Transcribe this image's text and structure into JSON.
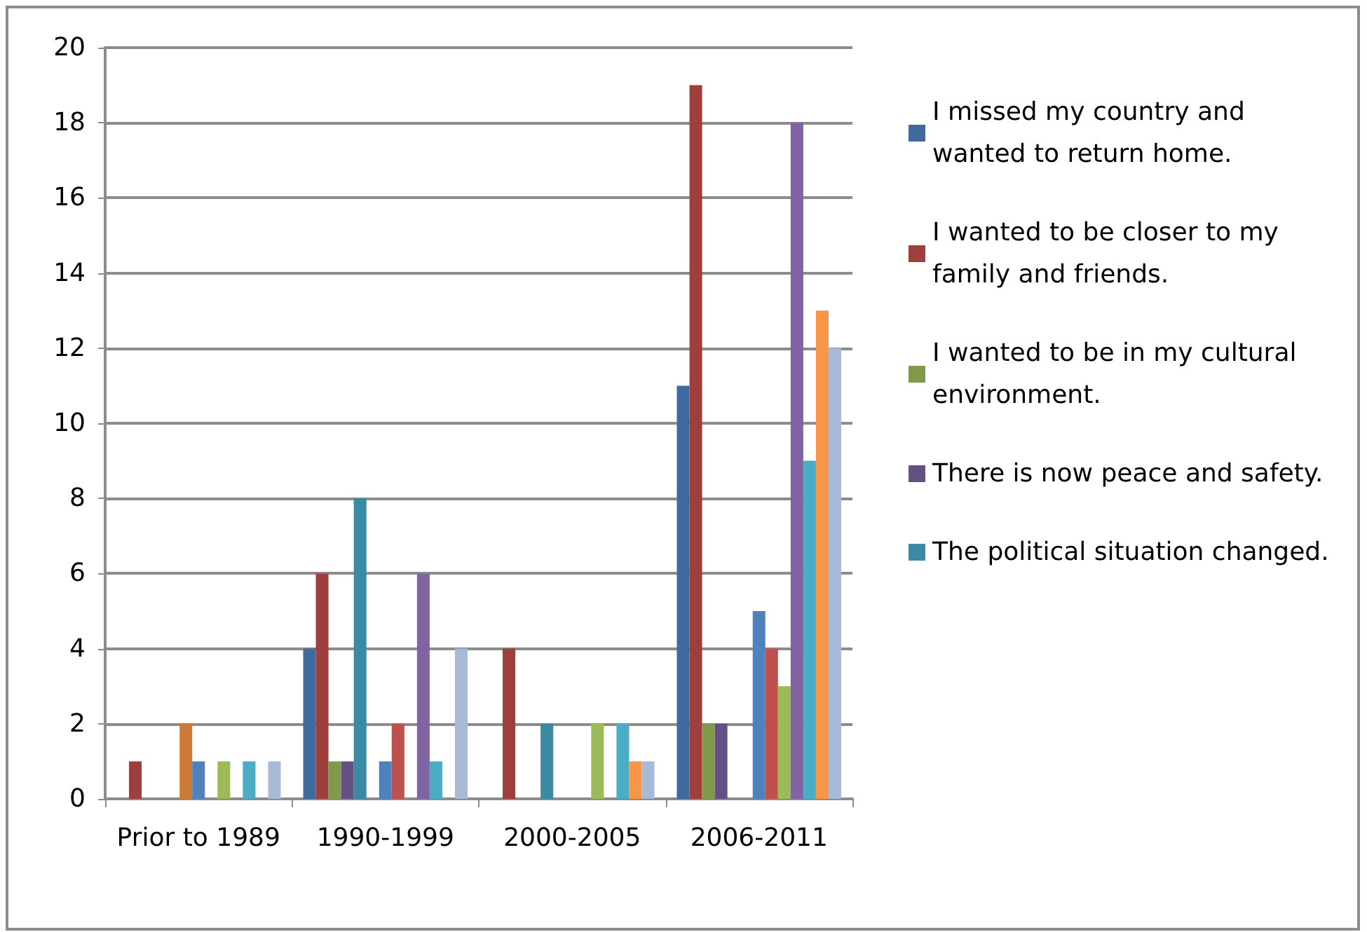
{
  "chart_data": {
    "type": "bar",
    "categories": [
      "Prior to 1989",
      "1990-1999",
      "2000-2005",
      "2006-2011"
    ],
    "series": [
      {
        "name": "I missed my country and wanted to return home.",
        "color": "#3f6aa0",
        "values": [
          0,
          4,
          0,
          11
        ]
      },
      {
        "name": "I wanted to be closer to my family and friends.",
        "color": "#9e3f3d",
        "values": [
          1,
          6,
          4,
          19
        ]
      },
      {
        "name": "I wanted to be in my cultural environment.",
        "color": "#7f9a48",
        "values": [
          0,
          1,
          0,
          2
        ]
      },
      {
        "name": "There is now peace and safety.",
        "color": "#664f84",
        "values": [
          0,
          1,
          0,
          2
        ]
      },
      {
        "name": "The political situation changed.",
        "color": "#3a8aa3",
        "values": [
          0,
          8,
          2,
          0
        ]
      },
      {
        "color": "#cc7a35",
        "values": [
          2,
          0,
          0,
          0
        ]
      },
      {
        "color": "#4f81bd",
        "values": [
          1,
          1,
          0,
          5
        ]
      },
      {
        "color": "#c0504d",
        "values": [
          0,
          2,
          0,
          4
        ]
      },
      {
        "color": "#9bbb59",
        "values": [
          1,
          0,
          2,
          3
        ]
      },
      {
        "color": "#8064a2",
        "values": [
          0,
          6,
          0,
          18
        ]
      },
      {
        "color": "#4bacc6",
        "values": [
          1,
          1,
          2,
          9
        ]
      },
      {
        "color": "#f79646",
        "values": [
          0,
          0,
          1,
          13
        ]
      },
      {
        "color": "#a9bad9",
        "values": [
          1,
          4,
          1,
          12
        ]
      }
    ],
    "ylim": [
      0,
      20
    ],
    "yticks": [
      0,
      2,
      4,
      6,
      8,
      10,
      12,
      14,
      16,
      18,
      20
    ],
    "grid": "y",
    "legend": "right"
  }
}
